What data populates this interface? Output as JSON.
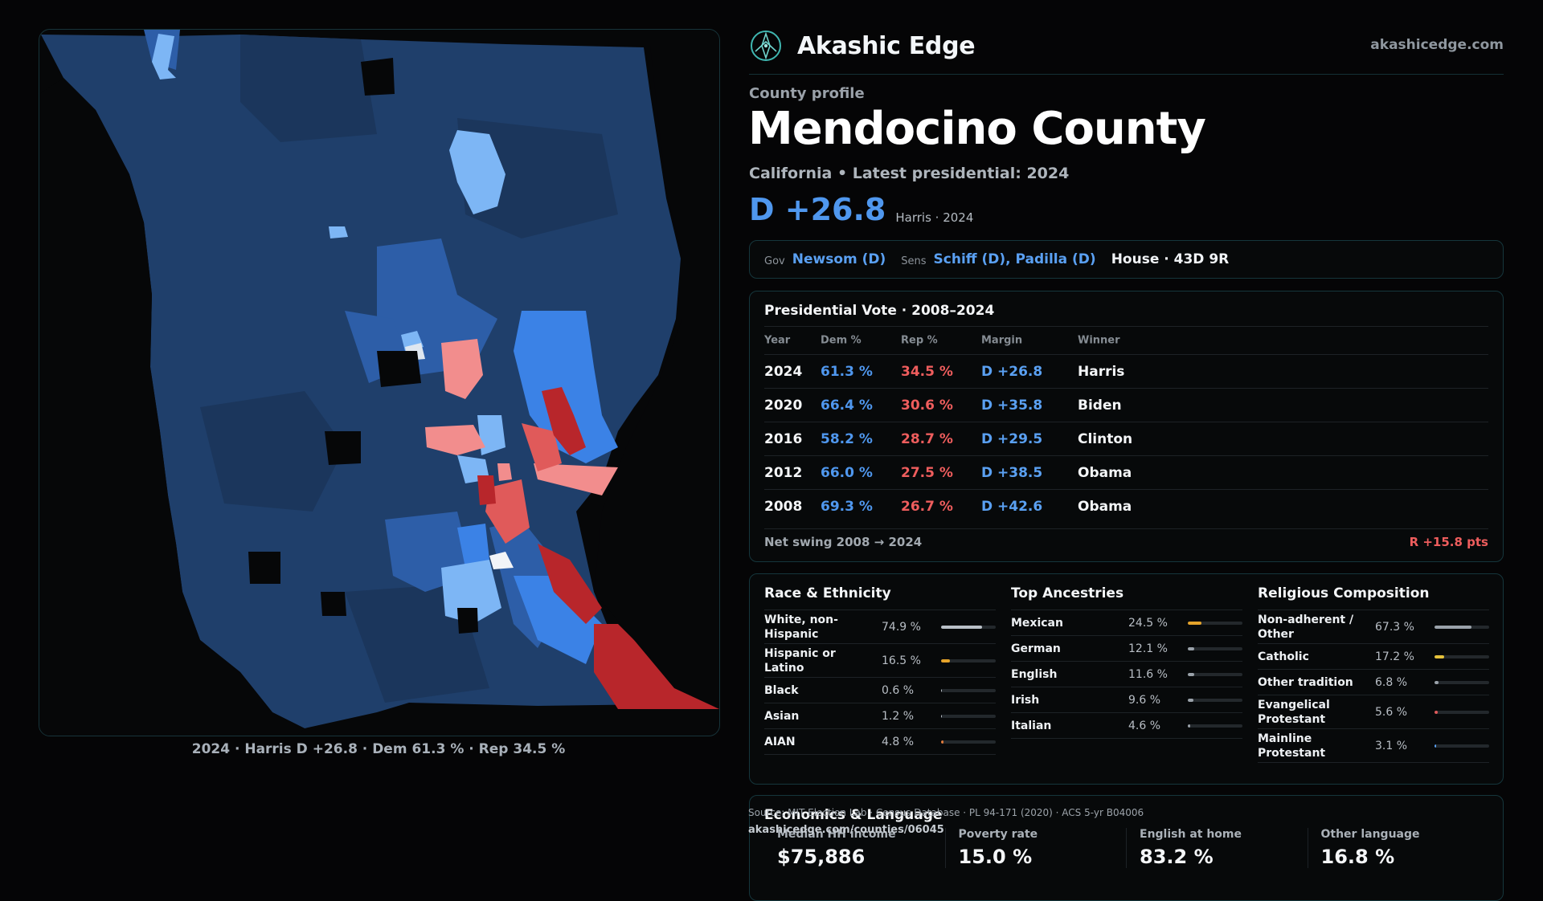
{
  "brand": {
    "name": "Akashic Edge",
    "url": "akashicedge.com",
    "logo_icon": "compass-rose-icon"
  },
  "profile": {
    "kicker": "County profile",
    "title": "Mendocino County",
    "subtitle": "California • Latest presidential: 2024",
    "margin": "D +26.8",
    "margin_note": "Harris · 2024"
  },
  "officials": {
    "gov_label": "Gov",
    "gov": "Newsom (D)",
    "sens_label": "Sens",
    "sens": "Schiff (D), Padilla (D)",
    "house": "House · 43D 9R"
  },
  "presidential": {
    "title": "Presidential Vote · 2008–2024",
    "headers": {
      "year": "Year",
      "dem": "Dem %",
      "rep": "Rep %",
      "margin": "Margin",
      "winner": "Winner"
    },
    "rows": [
      {
        "year": "2024",
        "dem": "61.3 %",
        "rep": "34.5 %",
        "margin": "D +26.8",
        "winner": "Harris"
      },
      {
        "year": "2020",
        "dem": "66.4 %",
        "rep": "30.6 %",
        "margin": "D +35.8",
        "winner": "Biden"
      },
      {
        "year": "2016",
        "dem": "58.2 %",
        "rep": "28.7 %",
        "margin": "D +29.5",
        "winner": "Clinton"
      },
      {
        "year": "2012",
        "dem": "66.0 %",
        "rep": "27.5 %",
        "margin": "D +38.5",
        "winner": "Obama"
      },
      {
        "year": "2008",
        "dem": "69.3 %",
        "rep": "26.7 %",
        "margin": "D +42.6",
        "winner": "Obama"
      }
    ],
    "swing_label": "Net swing 2008 → 2024",
    "swing_value": "R +15.8 pts"
  },
  "race": {
    "title": "Race & Ethnicity",
    "items": [
      {
        "label": "White, non-Hispanic",
        "pct": "74.9 %",
        "value": 74.9,
        "color": "#b9c0c7"
      },
      {
        "label": "Hispanic or Latino",
        "pct": "16.5 %",
        "value": 16.5,
        "color": "#e5a32a"
      },
      {
        "label": "Black",
        "pct": "0.6 %",
        "value": 0.6,
        "color": "#b9c0c7"
      },
      {
        "label": "Asian",
        "pct": "1.2 %",
        "value": 1.2,
        "color": "#b9c0c7"
      },
      {
        "label": "AIAN",
        "pct": "4.8 %",
        "value": 4.8,
        "color": "#e07a3a"
      }
    ]
  },
  "ancestry": {
    "title": "Top Ancestries",
    "items": [
      {
        "label": "Mexican",
        "pct": "24.5 %",
        "value": 24.5,
        "color": "#e5a32a"
      },
      {
        "label": "German",
        "pct": "12.1 %",
        "value": 12.1,
        "color": "#9aa2aa"
      },
      {
        "label": "English",
        "pct": "11.6 %",
        "value": 11.6,
        "color": "#9aa2aa"
      },
      {
        "label": "Irish",
        "pct": "9.6 %",
        "value": 9.6,
        "color": "#9aa2aa"
      },
      {
        "label": "Italian",
        "pct": "4.6 %",
        "value": 4.6,
        "color": "#9aa2aa"
      }
    ]
  },
  "religion": {
    "title": "Religious Composition",
    "items": [
      {
        "label": "Non-adherent / Other",
        "pct": "67.3 %",
        "value": 67.3,
        "color": "#9aa2aa"
      },
      {
        "label": "Catholic",
        "pct": "17.2 %",
        "value": 17.2,
        "color": "#e5c23a"
      },
      {
        "label": "Other tradition",
        "pct": "6.8 %",
        "value": 6.8,
        "color": "#9aa2aa"
      },
      {
        "label": "Evangelical Protestant",
        "pct": "5.6 %",
        "value": 5.6,
        "color": "#e05a5a"
      },
      {
        "label": "Mainline Protestant",
        "pct": "3.1 %",
        "value": 3.1,
        "color": "#5aa0f2"
      }
    ]
  },
  "economics": {
    "title": "Economics & Language",
    "stats": [
      {
        "label": "Median HH income",
        "value": "$75,886"
      },
      {
        "label": "Poverty rate",
        "value": "15.0 %"
      },
      {
        "label": "English at home",
        "value": "83.2 %"
      },
      {
        "label": "Other language",
        "value": "16.8 %"
      }
    ]
  },
  "source": {
    "note": "Source: MIT Election Lab · Census Database · PL 94-171 (2020) · ACS 5-yr B04006",
    "url": "akashicedge.com/counties/06045"
  },
  "map": {
    "caption": "2024 · Harris D +26.8 · Dem 61.3 % · Rep 34.5 %",
    "colors": {
      "dem_base": "#1f3f6b",
      "dem_mid": "#2d5ea8",
      "dem_bright": "#3b82e6",
      "dem_light": "#7db6f5",
      "rep_light": "#f28d8d",
      "rep": "#e05a5a",
      "rep_dark": "#b8262b"
    }
  }
}
